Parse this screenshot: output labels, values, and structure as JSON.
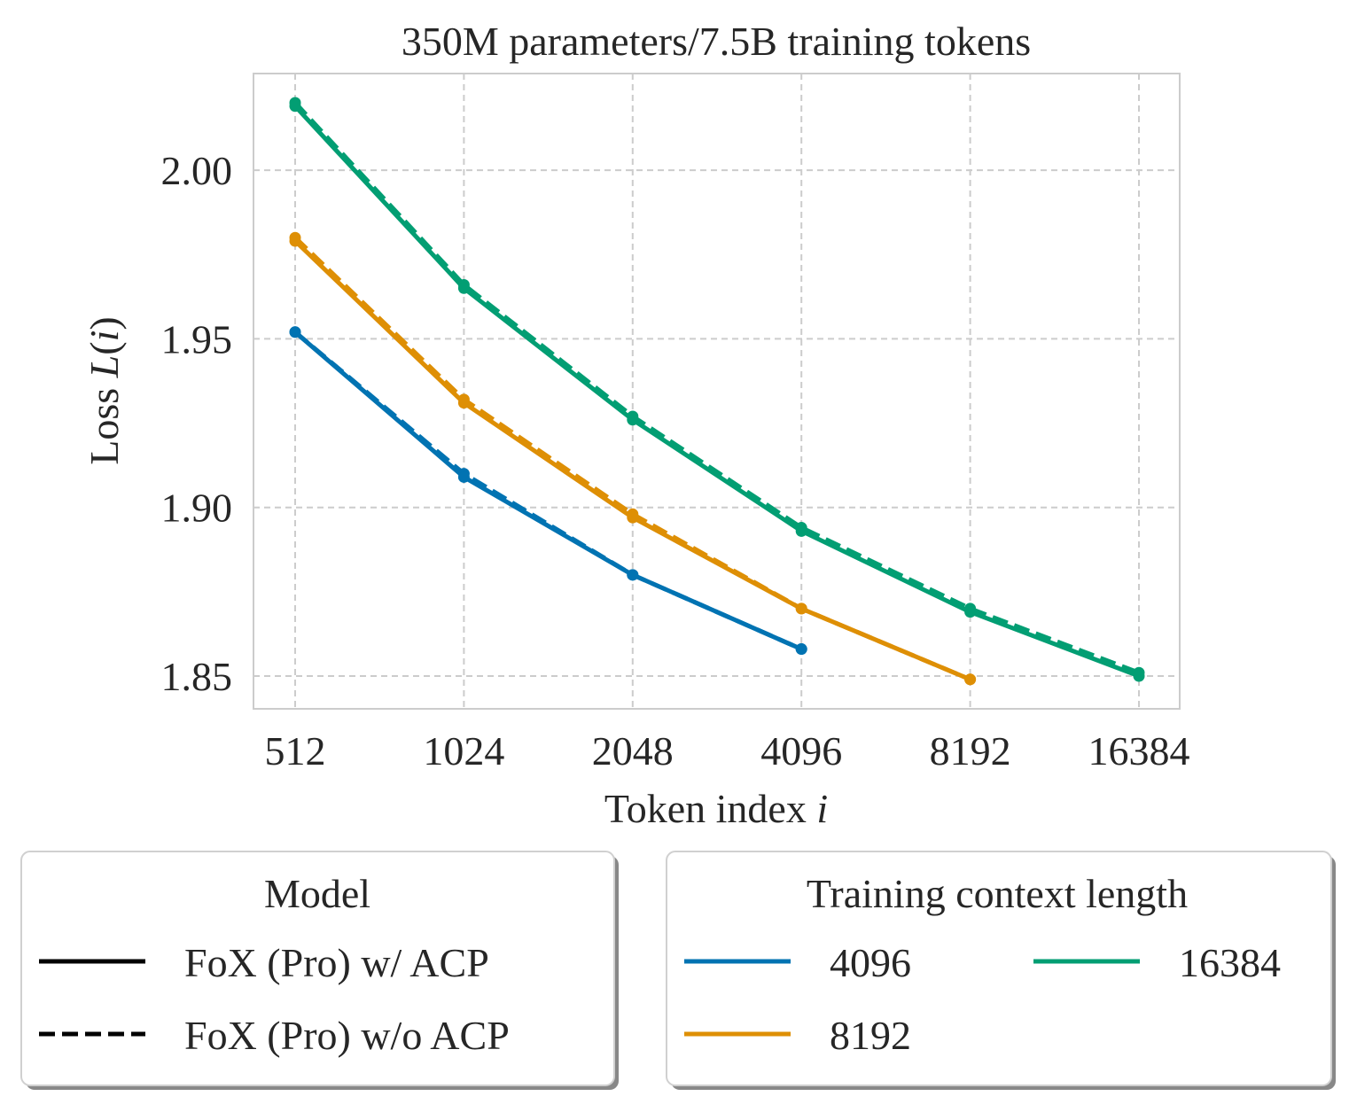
{
  "chart_data": {
    "type": "line",
    "title": "350M parameters/7.5B training tokens",
    "xlabel": "Token index i",
    "xlabel_parts": {
      "prefix": "Token index ",
      "var": "i"
    },
    "ylabel": "Loss L(i)",
    "ylabel_parts": {
      "prefix": "Loss ",
      "func": "L",
      "open": "(",
      "var": "i",
      "close": ")"
    },
    "x_scale": "log2",
    "x": [
      512,
      1024,
      2048,
      4096,
      8192,
      16384
    ],
    "x_tick_labels": [
      "512",
      "1024",
      "2048",
      "4096",
      "8192",
      "16384"
    ],
    "y_ticks": [
      1.85,
      1.9,
      1.95,
      2.0
    ],
    "y_tick_labels": [
      "1.85",
      "1.90",
      "1.95",
      "2.00"
    ],
    "ylim": [
      1.84,
      2.03
    ],
    "grid": true,
    "series": [
      {
        "name": "FoX (Pro) w/ ACP",
        "context": "4096",
        "style": "solid",
        "color": "#0173b2",
        "x": [
          512,
          1024,
          2048,
          4096
        ],
        "values": [
          1.952,
          1.909,
          1.88,
          1.858
        ]
      },
      {
        "name": "FoX (Pro) w/o ACP",
        "context": "4096",
        "style": "dashed",
        "color": "#0173b2",
        "x": [
          512,
          1024,
          2048,
          4096
        ],
        "values": [
          1.952,
          1.91,
          1.88,
          1.858
        ]
      },
      {
        "name": "FoX (Pro) w/ ACP",
        "context": "8192",
        "style": "solid",
        "color": "#de8f05",
        "x": [
          512,
          1024,
          2048,
          4096,
          8192
        ],
        "values": [
          1.979,
          1.931,
          1.897,
          1.87,
          1.849
        ]
      },
      {
        "name": "FoX (Pro) w/o ACP",
        "context": "8192",
        "style": "dashed",
        "color": "#de8f05",
        "x": [
          512,
          1024,
          2048,
          4096,
          8192
        ],
        "values": [
          1.98,
          1.932,
          1.898,
          1.87,
          1.849
        ]
      },
      {
        "name": "FoX (Pro) w/ ACP",
        "context": "16384",
        "style": "solid",
        "color": "#029e73",
        "x": [
          512,
          1024,
          2048,
          4096,
          8192,
          16384
        ],
        "values": [
          2.019,
          1.965,
          1.926,
          1.893,
          1.869,
          1.85
        ]
      },
      {
        "name": "FoX (Pro) w/o ACP",
        "context": "16384",
        "style": "dashed",
        "color": "#029e73",
        "x": [
          512,
          1024,
          2048,
          4096,
          8192,
          16384
        ],
        "values": [
          2.02,
          1.966,
          1.927,
          1.894,
          1.87,
          1.851
        ]
      }
    ],
    "legends": [
      {
        "title": "Model",
        "entries": [
          {
            "label": "FoX (Pro) w/ ACP",
            "style": "solid",
            "color": "#000000"
          },
          {
            "label": "FoX (Pro) w/o ACP",
            "style": "dashed",
            "color": "#000000"
          }
        ]
      },
      {
        "title": "Training context length",
        "entries": [
          {
            "label": "4096",
            "style": "solid",
            "color": "#0173b2"
          },
          {
            "label": "8192",
            "style": "solid",
            "color": "#de8f05"
          },
          {
            "label": "16384",
            "style": "solid",
            "color": "#029e73"
          }
        ]
      }
    ],
    "legend_placement": "below"
  }
}
